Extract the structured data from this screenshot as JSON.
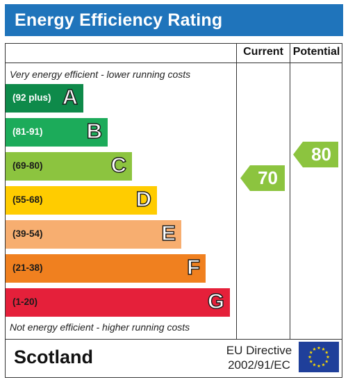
{
  "title": "Energy Efficiency Rating",
  "columns": {
    "current": "Current",
    "potential": "Potential"
  },
  "captions": {
    "top": "Very energy efficient - lower running costs",
    "bottom": "Not energy efficient - higher running costs"
  },
  "bands": [
    {
      "range": "(92 plus)",
      "letter": "A",
      "color": "#0e8a4a",
      "range_color": "#ffffff"
    },
    {
      "range": "(81-91)",
      "letter": "B",
      "color": "#1cab5a",
      "range_color": "#ffffff"
    },
    {
      "range": "(69-80)",
      "letter": "C",
      "color": "#8cc43f",
      "range_color": "#1a1a1a"
    },
    {
      "range": "(55-68)",
      "letter": "D",
      "color": "#ffcc00",
      "range_color": "#1a1a1a"
    },
    {
      "range": "(39-54)",
      "letter": "E",
      "color": "#f7ae70",
      "range_color": "#1a1a1a"
    },
    {
      "range": "(21-38)",
      "letter": "F",
      "color": "#f0801f",
      "range_color": "#1a1a1a"
    },
    {
      "range": "(1-20)",
      "letter": "G",
      "color": "#e5203a",
      "range_color": "#1a1a1a"
    }
  ],
  "current_rating": {
    "value": "70",
    "band": "C",
    "color": "#8cc43f"
  },
  "potential_rating": {
    "value": "80",
    "band": "C",
    "color": "#8cc43f"
  },
  "footer": {
    "country": "Scotland",
    "directive_line1": "EU Directive",
    "directive_line2": "2002/91/EC"
  }
}
